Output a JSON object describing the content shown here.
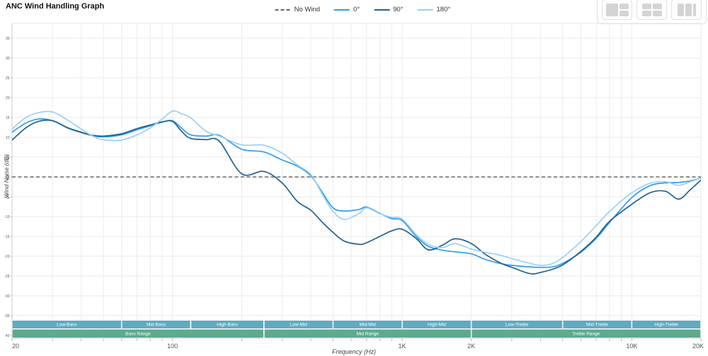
{
  "header": {
    "title": "ANC Wind Handling Graph"
  },
  "toolbar": {
    "buttons": [
      {
        "name": "layout-main-with-sidebar"
      },
      {
        "name": "layout-grid-2x2"
      },
      {
        "name": "layout-columns"
      }
    ]
  },
  "legend": {
    "items": [
      {
        "label": "No Wind",
        "color": "#666666",
        "line_style": "dashed"
      },
      {
        "label": "0°",
        "color": "#2D9CF1",
        "line_style": "solid"
      },
      {
        "label": "90°",
        "color": "#23608F",
        "line_style": "solid"
      },
      {
        "label": "180°",
        "color": "#9CCFF5",
        "line_style": "solid"
      }
    ]
  },
  "axes": {
    "x_label": "Frequency (Hz)",
    "y_label": "Wind Noise (dB)",
    "x_scale": "log",
    "x_range": [
      20,
      20000
    ],
    "y_range": [
      -40.7,
      38.8
    ],
    "x_ticks": [
      {
        "label": "20",
        "value": 20
      },
      {
        "label": "100",
        "value": 100
      },
      {
        "label": "1K",
        "value": 1000
      },
      {
        "label": "2K",
        "value": 2000
      },
      {
        "label": "10K",
        "value": 10000
      },
      {
        "label": "20K",
        "value": 20000
      }
    ],
    "y_ticks": [
      35,
      30,
      25,
      20,
      15,
      10,
      5,
      0,
      -5,
      -10,
      -15,
      -20,
      -25,
      -30,
      -35,
      -40
    ]
  },
  "chart_data": {
    "type": "line",
    "title": "ANC Wind Handling Graph",
    "xlabel": "Frequency (Hz)",
    "ylabel": "Wind Noise (dB)",
    "x_scale": "log",
    "xlim": [
      20,
      20000
    ],
    "ylim": [
      -40.7,
      38.8
    ],
    "grid": true,
    "legend_position": "top-center",
    "x": [
      20,
      23,
      26,
      30,
      35,
      40,
      45,
      50,
      60,
      70,
      80,
      90,
      100,
      110,
      120,
      140,
      160,
      200,
      250,
      300,
      350,
      400,
      450,
      500,
      560,
      650,
      700,
      800,
      900,
      1000,
      1150,
      1300,
      1500,
      1700,
      2000,
      2300,
      2700,
      3000,
      3600,
      4000,
      4500,
      5000,
      6000,
      7000,
      8000,
      10000,
      12000,
      14000,
      16000,
      18000,
      20000
    ],
    "series": [
      {
        "name": "No Wind",
        "color": "#666666",
        "style": "dashed",
        "constant": 0
      },
      {
        "name": "0°",
        "color": "#2D9CF1",
        "style": "solid",
        "values": [
          11.3,
          13.6,
          14.6,
          14.2,
          12.3,
          11.2,
          10.4,
          10.1,
          10.6,
          11.9,
          12.9,
          13.8,
          14.2,
          12.2,
          10.6,
          10.3,
          10.5,
          7.0,
          6.3,
          4.3,
          2.7,
          0.3,
          -4.0,
          -7.8,
          -8.6,
          -8.2,
          -7.6,
          -9.2,
          -10.5,
          -11.0,
          -15.0,
          -17.5,
          -18.5,
          -18.9,
          -19.4,
          -20.8,
          -21.9,
          -22.3,
          -22.7,
          -22.8,
          -22.7,
          -21.8,
          -19.0,
          -15.5,
          -11.5,
          -5.2,
          -2.2,
          -1.5,
          -1.4,
          -1.0,
          -0.3
        ]
      },
      {
        "name": "90°",
        "color": "#23608F",
        "style": "solid",
        "values": [
          9.3,
          12.4,
          14.0,
          14.2,
          12.4,
          11.3,
          10.5,
          10.3,
          10.9,
          12.2,
          13.1,
          13.9,
          14.0,
          11.4,
          9.7,
          9.4,
          9.0,
          0.8,
          1.4,
          -1.5,
          -6.2,
          -8.4,
          -11.5,
          -14.0,
          -16.2,
          -17.0,
          -16.6,
          -15.0,
          -13.6,
          -13.2,
          -15.5,
          -18.4,
          -17.2,
          -15.6,
          -16.8,
          -19.5,
          -21.8,
          -22.8,
          -24.4,
          -24.1,
          -23.3,
          -22.2,
          -18.8,
          -15.2,
          -11.2,
          -6.9,
          -4.0,
          -3.6,
          -5.6,
          -3.2,
          -0.8
        ]
      },
      {
        "name": "180°",
        "color": "#9CCFF5",
        "style": "solid",
        "values": [
          12.1,
          15.0,
          16.2,
          16.4,
          14.3,
          12.1,
          10.3,
          9.4,
          9.3,
          10.6,
          12.4,
          14.6,
          16.6,
          15.9,
          14.9,
          11.5,
          10.3,
          8.1,
          8.0,
          6.0,
          3.0,
          0.6,
          -4.5,
          -8.7,
          -10.7,
          -9.2,
          -7.8,
          -9.3,
          -10.2,
          -10.6,
          -14.5,
          -17.0,
          -17.8,
          -16.8,
          -18.2,
          -19.0,
          -19.8,
          -20.6,
          -21.8,
          -22.3,
          -21.9,
          -20.3,
          -16.3,
          -12.3,
          -8.7,
          -4.0,
          -1.6,
          -1.2,
          -2.1,
          -1.2,
          -0.3
        ]
      }
    ],
    "bands": {
      "sub_color": "#5FABC0",
      "main_color": "#5FA98C",
      "sub": [
        {
          "label": "Low-Bass",
          "from": 20,
          "to": 60
        },
        {
          "label": "Mid-Bass",
          "from": 60,
          "to": 120
        },
        {
          "label": "High-Bass",
          "from": 120,
          "to": 250
        },
        {
          "label": "Low-Mid",
          "from": 250,
          "to": 500
        },
        {
          "label": "Mid-Mid",
          "from": 500,
          "to": 1000
        },
        {
          "label": "High-Mid",
          "from": 1000,
          "to": 2000
        },
        {
          "label": "Low-Treble",
          "from": 2000,
          "to": 5000
        },
        {
          "label": "Mid-Treble",
          "from": 5000,
          "to": 10000
        },
        {
          "label": "High-Treble",
          "from": 10000,
          "to": 20000
        }
      ],
      "main": [
        {
          "label": "Bass Range",
          "from": 20,
          "to": 250
        },
        {
          "label": "Mid Range",
          "from": 250,
          "to": 2000
        },
        {
          "label": "Treble Range",
          "from": 2000,
          "to": 20000
        }
      ]
    }
  }
}
